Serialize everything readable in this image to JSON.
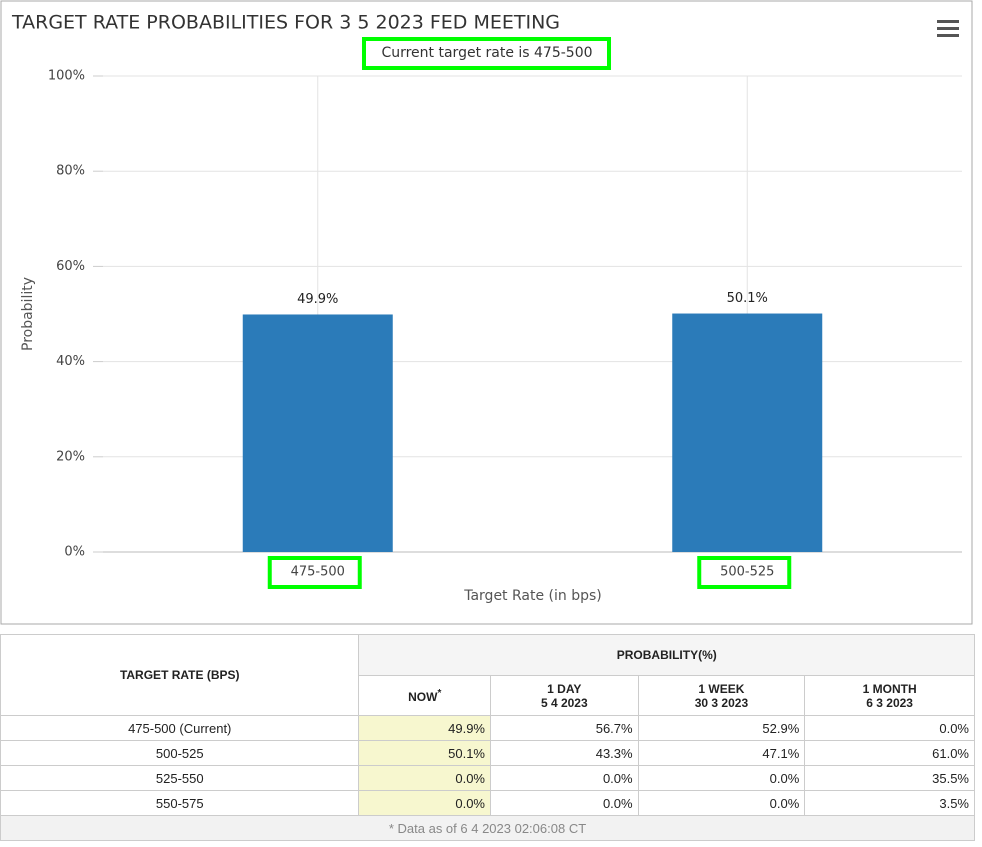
{
  "chart_data": {
    "type": "bar",
    "title": "TARGET RATE PROBABILITIES FOR 3 5 2023 FED MEETING",
    "subtitle": "Current target rate is 475-500",
    "x_label": "Target Rate (in bps)",
    "y_label": "Probability",
    "categories": [
      "475-500",
      "500-525"
    ],
    "values": [
      49.9,
      50.1
    ],
    "value_labels": [
      "49.9%",
      "50.1%"
    ],
    "color": "#2b7bb9",
    "ylim": [
      0,
      100
    ],
    "yticks": [
      {
        "value": 0,
        "label": "0%"
      },
      {
        "value": 20,
        "label": "20%"
      },
      {
        "value": 40,
        "label": "40%"
      },
      {
        "value": 60,
        "label": "60%"
      },
      {
        "value": 80,
        "label": "80%"
      },
      {
        "value": 100,
        "label": "100%"
      }
    ],
    "grid": true
  },
  "table": {
    "header": {
      "rate": "TARGET RATE (BPS)",
      "probability": "PROBABILITY(%)",
      "columns": [
        {
          "name": "NOW",
          "mark": "*"
        },
        {
          "name": "1 DAY",
          "date": "5 4 2023"
        },
        {
          "name": "1 WEEK",
          "date": "30 3 2023"
        },
        {
          "name": "1 MONTH",
          "date": "6 3 2023"
        }
      ]
    },
    "rows": [
      [
        "475-500 (Current)",
        "49.9%",
        "56.7%",
        "52.9%",
        "0.0%"
      ],
      [
        "500-525",
        "50.1%",
        "43.3%",
        "47.1%",
        "61.0%"
      ],
      [
        "525-550",
        "0.0%",
        "0.0%",
        "0.0%",
        "35.5%"
      ],
      [
        "550-575",
        "0.0%",
        "0.0%",
        "0.0%",
        "3.5%"
      ]
    ],
    "footnote": "* Data as of 6 4 2023 02:06:08 CT"
  }
}
